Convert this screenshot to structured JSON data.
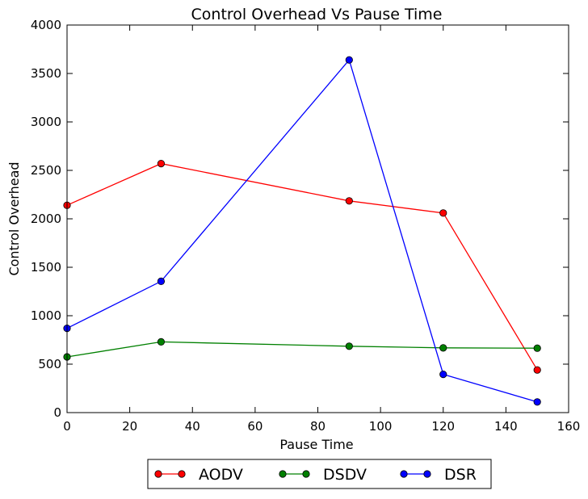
{
  "chart_data": {
    "type": "line",
    "title": "Control Overhead Vs Pause Time",
    "xlabel": "Pause Time",
    "ylabel": "Control Overhead",
    "xlim": [
      0,
      160
    ],
    "ylim": [
      0,
      4000
    ],
    "xticks": [
      0,
      20,
      40,
      60,
      80,
      100,
      120,
      140,
      160
    ],
    "yticks": [
      0,
      500,
      1000,
      1500,
      2000,
      2500,
      3000,
      3500,
      4000
    ],
    "grid": false,
    "legend_position": "bottom-center",
    "x": [
      0,
      30,
      90,
      120,
      150
    ],
    "series": [
      {
        "name": "AODV",
        "color": "#ff0000",
        "values": [
          2140,
          2570,
          2185,
          2060,
          440
        ]
      },
      {
        "name": "DSDV",
        "color": "#008000",
        "values": [
          575,
          730,
          685,
          668,
          665
        ]
      },
      {
        "name": "DSR",
        "color": "#0000ff",
        "values": [
          870,
          1355,
          3640,
          395,
          110
        ]
      }
    ]
  }
}
